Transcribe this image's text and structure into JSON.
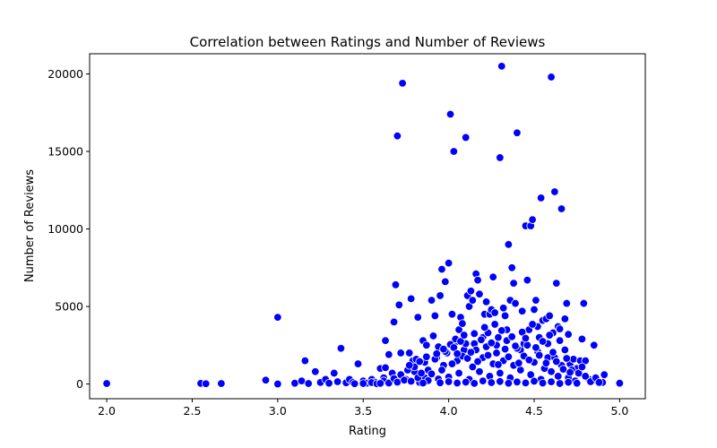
{
  "chart_data": {
    "type": "scatter",
    "title": "Correlation between Ratings and Number of Reviews",
    "xlabel": "Rating",
    "ylabel": "Number of Reviews",
    "xlim": [
      1.9,
      5.15
    ],
    "ylim": [
      -950,
      21300
    ],
    "xticks": [
      "2.0",
      "2.5",
      "3.0",
      "3.5",
      "4.0",
      "4.5",
      "5.0"
    ],
    "yticks": [
      "0",
      "5000",
      "10000",
      "15000",
      "20000"
    ],
    "grid": false,
    "marker_color": "#0000ff",
    "marker_edge_color": "#ffffff",
    "series": [
      {
        "points": [
          [
            2.0,
            30
          ],
          [
            2.55,
            40
          ],
          [
            2.58,
            20
          ],
          [
            2.67,
            30
          ],
          [
            2.93,
            250
          ],
          [
            3.0,
            4300
          ],
          [
            3.0,
            0
          ],
          [
            3.1,
            50
          ],
          [
            3.14,
            200
          ],
          [
            3.16,
            1500
          ],
          [
            3.18,
            30
          ],
          [
            3.22,
            800
          ],
          [
            3.25,
            100
          ],
          [
            3.28,
            300
          ],
          [
            3.3,
            50
          ],
          [
            3.33,
            700
          ],
          [
            3.35,
            150
          ],
          [
            3.37,
            2300
          ],
          [
            3.4,
            80
          ],
          [
            3.42,
            300
          ],
          [
            3.44,
            100
          ],
          [
            3.47,
            1300
          ],
          [
            3.5,
            200
          ],
          [
            3.52,
            50
          ],
          [
            3.55,
            300
          ],
          [
            3.57,
            120
          ],
          [
            3.6,
            1000
          ],
          [
            3.62,
            400
          ],
          [
            3.63,
            2800
          ],
          [
            3.65,
            1900
          ],
          [
            3.67,
            700
          ],
          [
            3.68,
            4000
          ],
          [
            3.69,
            6400
          ],
          [
            3.7,
            16000
          ],
          [
            3.71,
            5100
          ],
          [
            3.72,
            2000
          ],
          [
            3.73,
            19400
          ],
          [
            3.75,
            300
          ],
          [
            3.77,
            2000
          ],
          [
            3.78,
            5500
          ],
          [
            3.79,
            1500
          ],
          [
            3.8,
            800
          ],
          [
            3.81,
            1600
          ],
          [
            3.82,
            4300
          ],
          [
            3.83,
            100
          ],
          [
            3.85,
            2800
          ],
          [
            3.86,
            400
          ],
          [
            3.87,
            2500
          ],
          [
            3.88,
            900
          ],
          [
            3.9,
            5400
          ],
          [
            3.91,
            3100
          ],
          [
            3.92,
            4400
          ],
          [
            3.93,
            1700
          ],
          [
            3.94,
            2400
          ],
          [
            3.95,
            5700
          ],
          [
            3.96,
            7400
          ],
          [
            3.97,
            1200
          ],
          [
            3.98,
            6600
          ],
          [
            3.99,
            2000
          ],
          [
            4.0,
            7800
          ],
          [
            4.01,
            17400
          ],
          [
            4.02,
            4500
          ],
          [
            4.03,
            15000
          ],
          [
            4.04,
            2700
          ],
          [
            4.05,
            1500
          ],
          [
            4.06,
            3500
          ],
          [
            4.07,
            4300
          ],
          [
            4.08,
            3900
          ],
          [
            4.09,
            2200
          ],
          [
            4.1,
            15900
          ],
          [
            4.11,
            5700
          ],
          [
            4.12,
            5000
          ],
          [
            4.13,
            6000
          ],
          [
            4.14,
            5400
          ],
          [
            4.15,
            2600
          ],
          [
            4.16,
            7100
          ],
          [
            4.17,
            6700
          ],
          [
            4.18,
            5800
          ],
          [
            4.2,
            3000
          ],
          [
            4.21,
            4500
          ],
          [
            4.22,
            5300
          ],
          [
            4.23,
            3300
          ],
          [
            4.24,
            4500
          ],
          [
            4.25,
            4800
          ],
          [
            4.26,
            6900
          ],
          [
            4.27,
            4600
          ],
          [
            4.28,
            2500
          ],
          [
            4.29,
            3000
          ],
          [
            4.3,
            14600
          ],
          [
            4.31,
            20500
          ],
          [
            4.32,
            4900
          ],
          [
            4.33,
            4400
          ],
          [
            4.34,
            3500
          ],
          [
            4.35,
            9000
          ],
          [
            4.36,
            5400
          ],
          [
            4.37,
            7500
          ],
          [
            4.38,
            6500
          ],
          [
            4.39,
            5200
          ],
          [
            4.4,
            16200
          ],
          [
            4.42,
            2200
          ],
          [
            4.43,
            4700
          ],
          [
            4.44,
            2600
          ],
          [
            4.45,
            10200
          ],
          [
            4.46,
            6700
          ],
          [
            4.47,
            3500
          ],
          [
            4.48,
            10200
          ],
          [
            4.49,
            10600
          ],
          [
            4.5,
            4800
          ],
          [
            4.51,
            5400
          ],
          [
            4.52,
            3700
          ],
          [
            4.53,
            3000
          ],
          [
            4.54,
            12000
          ],
          [
            4.55,
            4100
          ],
          [
            4.56,
            2700
          ],
          [
            4.57,
            4200
          ],
          [
            4.58,
            1700
          ],
          [
            4.59,
            4400
          ],
          [
            4.6,
            19800
          ],
          [
            4.61,
            3300
          ],
          [
            4.62,
            12400
          ],
          [
            4.63,
            6500
          ],
          [
            4.64,
            3700
          ],
          [
            4.65,
            2800
          ],
          [
            4.66,
            11300
          ],
          [
            4.68,
            4200
          ],
          [
            4.69,
            5200
          ],
          [
            4.7,
            3200
          ],
          [
            4.71,
            1300
          ],
          [
            4.73,
            1600
          ],
          [
            4.75,
            1000
          ],
          [
            4.77,
            1500
          ],
          [
            4.78,
            2900
          ],
          [
            4.79,
            5200
          ],
          [
            4.8,
            1500
          ],
          [
            4.82,
            300
          ],
          [
            4.85,
            2500
          ],
          [
            4.87,
            200
          ],
          [
            4.9,
            100
          ],
          [
            4.91,
            600
          ],
          [
            5.0,
            50
          ],
          [
            3.5,
            30
          ],
          [
            3.55,
            90
          ],
          [
            3.58,
            15
          ],
          [
            3.62,
            200
          ],
          [
            3.65,
            60
          ],
          [
            3.68,
            350
          ],
          [
            3.7,
            120
          ],
          [
            3.72,
            600
          ],
          [
            3.74,
            250
          ],
          [
            3.76,
            900
          ],
          [
            3.78,
            180
          ],
          [
            3.8,
            1100
          ],
          [
            3.82,
            400
          ],
          [
            3.84,
            700
          ],
          [
            3.86,
            1400
          ],
          [
            3.88,
            220
          ],
          [
            3.9,
            650
          ],
          [
            3.92,
            1600
          ],
          [
            3.94,
            320
          ],
          [
            3.96,
            900
          ],
          [
            3.98,
            2100
          ],
          [
            4.0,
            450
          ],
          [
            4.02,
            1300
          ],
          [
            4.04,
            2900
          ],
          [
            4.06,
            700
          ],
          [
            4.08,
            1800
          ],
          [
            4.1,
            2600
          ],
          [
            4.12,
            300
          ],
          [
            4.14,
            1100
          ],
          [
            4.16,
            2200
          ],
          [
            4.18,
            800
          ],
          [
            4.2,
            1700
          ],
          [
            4.22,
            2400
          ],
          [
            4.24,
            500
          ],
          [
            4.26,
            1300
          ],
          [
            4.28,
            2000
          ],
          [
            4.3,
            700
          ],
          [
            4.32,
            1500
          ],
          [
            4.34,
            2800
          ],
          [
            4.36,
            400
          ],
          [
            4.38,
            1200
          ],
          [
            4.4,
            2300
          ],
          [
            4.42,
            900
          ],
          [
            4.44,
            1800
          ],
          [
            4.46,
            2500
          ],
          [
            4.48,
            600
          ],
          [
            4.5,
            1400
          ],
          [
            4.52,
            2100
          ],
          [
            4.54,
            300
          ],
          [
            4.56,
            1000
          ],
          [
            4.58,
            2600
          ],
          [
            4.6,
            800
          ],
          [
            4.62,
            1700
          ],
          [
            4.64,
            500
          ],
          [
            4.66,
            1200
          ],
          [
            4.68,
            2200
          ],
          [
            4.7,
            400
          ],
          [
            4.72,
            900
          ],
          [
            4.74,
            200
          ],
          [
            4.76,
            700
          ],
          [
            4.78,
            1100
          ],
          [
            4.8,
            500
          ],
          [
            4.83,
            150
          ],
          [
            4.86,
            400
          ],
          [
            4.88,
            100
          ],
          [
            3.63,
            1050
          ],
          [
            3.77,
            1200
          ],
          [
            3.83,
            1450
          ],
          [
            3.87,
            1750
          ],
          [
            3.93,
            1950
          ],
          [
            3.97,
            2250
          ],
          [
            4.01,
            2550
          ],
          [
            4.03,
            2350
          ],
          [
            4.05,
            1950
          ],
          [
            4.07,
            2750
          ],
          [
            4.09,
            3150
          ],
          [
            4.11,
            1650
          ],
          [
            4.13,
            2050
          ],
          [
            4.15,
            3250
          ],
          [
            4.17,
            1450
          ],
          [
            4.19,
            2850
          ],
          [
            4.21,
            3650
          ],
          [
            4.23,
            1850
          ],
          [
            4.25,
            2650
          ],
          [
            4.27,
            3850
          ],
          [
            4.29,
            1250
          ],
          [
            4.31,
            3450
          ],
          [
            4.33,
            2250
          ],
          [
            4.35,
            1750
          ],
          [
            4.37,
            3050
          ],
          [
            4.39,
            2450
          ],
          [
            4.41,
            1350
          ],
          [
            4.43,
            3350
          ],
          [
            4.45,
            2950
          ],
          [
            4.47,
            1550
          ],
          [
            4.49,
            3850
          ],
          [
            4.51,
            2350
          ],
          [
            4.53,
            1850
          ],
          [
            4.55,
            2750
          ],
          [
            4.57,
            1350
          ],
          [
            4.59,
            3150
          ],
          [
            4.61,
            2050
          ],
          [
            4.63,
            1450
          ],
          [
            4.65,
            3550
          ],
          [
            4.67,
            950
          ],
          [
            4.69,
            1650
          ],
          [
            4.71,
            750
          ],
          [
            3.95,
            80
          ],
          [
            4.0,
            150
          ],
          [
            4.05,
            60
          ],
          [
            4.1,
            120
          ],
          [
            4.15,
            40
          ],
          [
            4.2,
            200
          ],
          [
            4.25,
            90
          ],
          [
            4.3,
            160
          ],
          [
            4.35,
            50
          ],
          [
            4.4,
            130
          ],
          [
            4.45,
            70
          ],
          [
            4.5,
            180
          ],
          [
            4.55,
            60
          ],
          [
            4.6,
            140
          ],
          [
            4.65,
            30
          ],
          [
            4.7,
            110
          ],
          [
            4.75,
            50
          ],
          [
            3.6,
            40
          ],
          [
            3.45,
            20
          ],
          [
            3.85,
            60
          ]
        ]
      }
    ]
  }
}
